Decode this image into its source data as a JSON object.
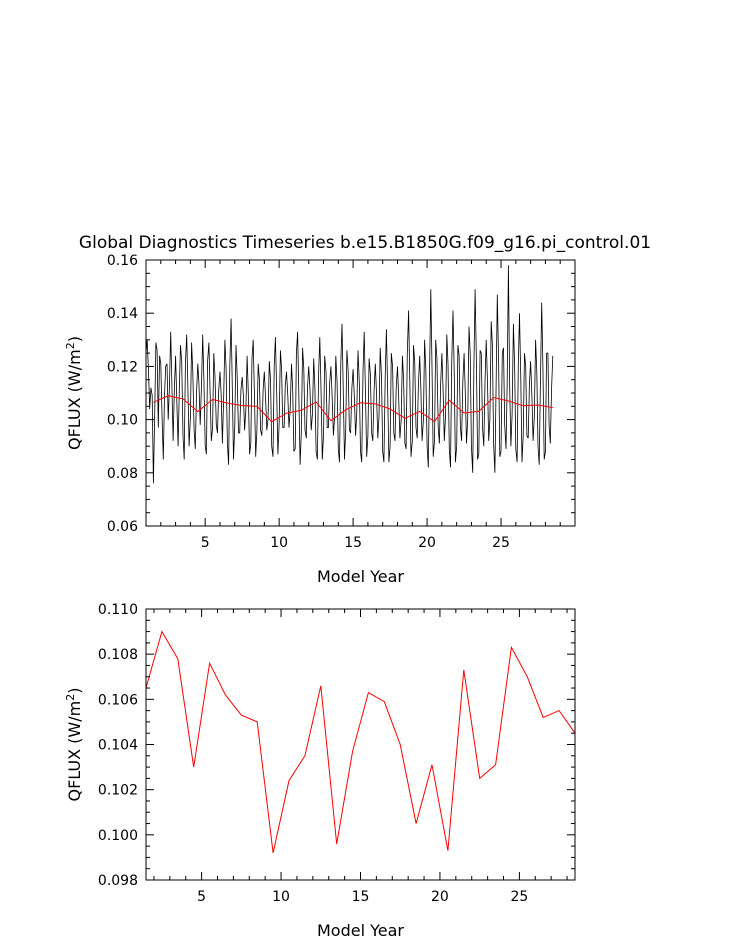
{
  "title": "Global Diagnostics Timeseries b.e15.B1850G.f09_g16.pi_control.01",
  "chart_data": [
    {
      "type": "line",
      "xlabel": "Model Year",
      "ylabel": "QFLUX (W/m",
      "ylabel_sup": "2",
      "ylabel_end": ")",
      "xlim": [
        1,
        30
      ],
      "ylim": [
        0.06,
        0.16
      ],
      "xticks": [
        5,
        10,
        15,
        20,
        25
      ],
      "xtick_labels": [
        "5",
        "10",
        "15",
        "20",
        "25"
      ],
      "yticks": [
        0.06,
        0.08,
        0.1,
        0.12,
        0.14,
        0.16
      ],
      "ytick_labels": [
        "0.06",
        "0.08",
        "0.10",
        "0.12",
        "0.14",
        "0.16"
      ],
      "series": [
        {
          "color": "#000000",
          "x_start": 1.0,
          "x_step": 0.083333,
          "values": [
            0.125,
            0.13,
            0.118,
            0.104,
            0.112,
            0.109,
            0.076,
            0.1,
            0.129,
            0.126,
            0.097,
            0.124,
            0.121,
            0.102,
            0.085,
            0.109,
            0.12,
            0.121,
            0.1,
            0.112,
            0.133,
            0.113,
            0.092,
            0.112,
            0.124,
            0.107,
            0.09,
            0.111,
            0.128,
            0.122,
            0.094,
            0.085,
            0.121,
            0.132,
            0.112,
            0.09,
            0.101,
            0.129,
            0.118,
            0.096,
            0.089,
            0.11,
            0.121,
            0.113,
            0.098,
            0.113,
            0.132,
            0.115,
            0.09,
            0.087,
            0.122,
            0.129,
            0.11,
            0.092,
            0.097,
            0.125,
            0.116,
            0.098,
            0.095,
            0.111,
            0.118,
            0.109,
            0.091,
            0.109,
            0.13,
            0.119,
            0.091,
            0.083,
            0.12,
            0.138,
            0.112,
            0.085,
            0.098,
            0.128,
            0.116,
            0.095,
            0.095,
            0.111,
            0.116,
            0.109,
            0.096,
            0.104,
            0.124,
            0.11,
            0.087,
            0.091,
            0.123,
            0.13,
            0.108,
            0.086,
            0.096,
            0.121,
            0.115,
            0.096,
            0.094,
            0.111,
            0.118,
            0.108,
            0.096,
            0.1,
            0.122,
            0.115,
            0.09,
            0.086,
            0.12,
            0.131,
            0.11,
            0.087,
            0.098,
            0.126,
            0.119,
            0.097,
            0.097,
            0.113,
            0.118,
            0.109,
            0.097,
            0.104,
            0.121,
            0.111,
            0.088,
            0.089,
            0.125,
            0.133,
            0.108,
            0.083,
            0.095,
            0.127,
            0.119,
            0.096,
            0.093,
            0.112,
            0.12,
            0.111,
            0.096,
            0.102,
            0.123,
            0.112,
            0.088,
            0.085,
            0.117,
            0.131,
            0.11,
            0.085,
            0.094,
            0.124,
            0.118,
            0.097,
            0.097,
            0.114,
            0.12,
            0.109,
            0.094,
            0.101,
            0.124,
            0.114,
            0.089,
            0.084,
            0.121,
            0.136,
            0.112,
            0.085,
            0.096,
            0.126,
            0.118,
            0.096,
            0.095,
            0.112,
            0.119,
            0.109,
            0.094,
            0.103,
            0.126,
            0.114,
            0.088,
            0.084,
            0.118,
            0.133,
            0.111,
            0.086,
            0.094,
            0.123,
            0.117,
            0.095,
            0.092,
            0.111,
            0.121,
            0.11,
            0.093,
            0.101,
            0.127,
            0.116,
            0.088,
            0.084,
            0.116,
            0.134,
            0.112,
            0.084,
            0.09,
            0.125,
            0.12,
            0.095,
            0.092,
            0.112,
            0.12,
            0.108,
            0.093,
            0.1,
            0.124,
            0.115,
            0.091,
            0.089,
            0.125,
            0.141,
            0.115,
            0.086,
            0.092,
            0.128,
            0.122,
            0.097,
            0.093,
            0.113,
            0.124,
            0.111,
            0.092,
            0.1,
            0.13,
            0.119,
            0.09,
            0.082,
            0.116,
            0.149,
            0.12,
            0.086,
            0.092,
            0.13,
            0.123,
            0.097,
            0.091,
            0.113,
            0.125,
            0.111,
            0.092,
            0.102,
            0.132,
            0.121,
            0.089,
            0.082,
            0.121,
            0.141,
            0.118,
            0.084,
            0.09,
            0.128,
            0.124,
            0.097,
            0.092,
            0.114,
            0.125,
            0.11,
            0.091,
            0.1,
            0.135,
            0.125,
            0.09,
            0.08,
            0.12,
            0.149,
            0.122,
            0.085,
            0.087,
            0.126,
            0.125,
            0.097,
            0.09,
            0.114,
            0.13,
            0.114,
            0.092,
            0.1,
            0.137,
            0.128,
            0.091,
            0.08,
            0.113,
            0.147,
            0.122,
            0.086,
            0.088,
            0.125,
            0.127,
            0.098,
            0.089,
            0.114,
            0.158,
            0.112,
            0.09,
            0.102,
            0.136,
            0.121,
            0.089,
            0.084,
            0.12,
            0.14,
            0.115,
            0.084,
            0.094,
            0.125,
            0.12,
            0.094,
            0.093,
            0.113,
            0.122,
            0.109,
            0.092,
            0.101,
            0.13,
            0.118,
            0.09,
            0.083,
            0.116,
            0.144,
            0.12,
            0.085,
            0.088,
            0.125,
            0.125,
            0.098,
            0.091,
            0.112,
            0.124
          ]
        },
        {
          "color": "#ff0000",
          "x": [
            1.5,
            2.5,
            3.5,
            4.5,
            5.5,
            6.5,
            7.5,
            8.5,
            9.5,
            10.5,
            11.5,
            12.5,
            13.5,
            14.5,
            15.5,
            16.5,
            17.5,
            18.5,
            19.5,
            20.5,
            21.5,
            22.5,
            23.5,
            24.5,
            25.5,
            26.5,
            27.5,
            28.5
          ],
          "values": [
            0.1065,
            0.109,
            0.1078,
            0.103,
            0.1076,
            0.1062,
            0.1053,
            0.105,
            0.0992,
            0.1024,
            0.1035,
            0.1066,
            0.0996,
            0.1037,
            0.1063,
            0.1059,
            0.104,
            0.1005,
            0.1031,
            0.0993,
            0.1073,
            0.1025,
            0.1031,
            0.1083,
            0.107,
            0.1052,
            0.1055,
            0.1045
          ]
        }
      ]
    },
    {
      "type": "line",
      "xlabel": "Model Year",
      "ylabel": "QFLUX (W/m",
      "ylabel_sup": "2",
      "ylabel_end": ")",
      "xlim": [
        1.5,
        28.5
      ],
      "ylim": [
        0.098,
        0.11
      ],
      "xticks": [
        5,
        10,
        15,
        20,
        25
      ],
      "xtick_labels": [
        "5",
        "10",
        "15",
        "20",
        "25"
      ],
      "yticks": [
        0.098,
        0.1,
        0.102,
        0.104,
        0.106,
        0.108,
        0.11
      ],
      "ytick_labels": [
        "0.098",
        "0.100",
        "0.102",
        "0.104",
        "0.106",
        "0.108",
        "0.110"
      ],
      "series": [
        {
          "color": "#ff0000",
          "x": [
            1.5,
            2.5,
            3.5,
            4.5,
            5.5,
            6.5,
            7.5,
            8.5,
            9.5,
            10.5,
            11.5,
            12.5,
            13.5,
            14.5,
            15.5,
            16.5,
            17.5,
            18.5,
            19.5,
            20.5,
            21.5,
            22.5,
            23.5,
            24.5,
            25.5,
            26.5,
            27.5,
            28.5
          ],
          "values": [
            0.1065,
            0.109,
            0.1078,
            0.103,
            0.1076,
            0.1062,
            0.1053,
            0.105,
            0.0992,
            0.1024,
            0.1035,
            0.1066,
            0.0996,
            0.1037,
            0.1063,
            0.1059,
            0.104,
            0.1005,
            0.1031,
            0.0993,
            0.1073,
            0.1025,
            0.1031,
            0.1083,
            0.107,
            0.1052,
            0.1055,
            0.1045
          ]
        }
      ]
    }
  ]
}
